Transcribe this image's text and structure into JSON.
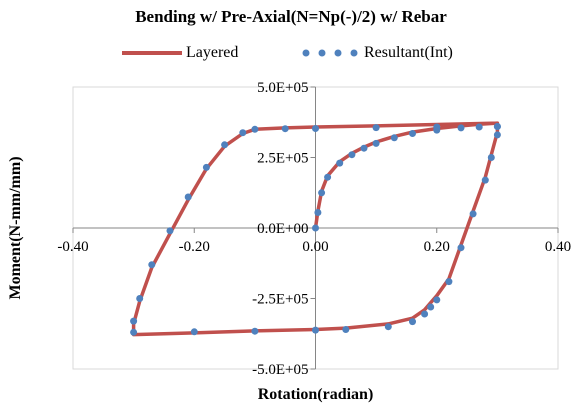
{
  "chart_data": {
    "type": "scatter",
    "title": "Bending w/ Pre-Axial(N=Np(-)/2) w/ Rebar",
    "xlabel": "Rotation(radian)",
    "ylabel": "Moment(N-mm/mm)",
    "xlim": [
      -0.4,
      0.4
    ],
    "ylim": [
      -500000,
      500000
    ],
    "x_ticks": [
      -0.4,
      -0.2,
      0.0,
      0.2,
      0.4
    ],
    "x_tick_labels": [
      "-0.40",
      "-0.20",
      "0.00",
      "0.20",
      "0.40"
    ],
    "y_ticks": [
      500000,
      250000,
      0,
      -250000,
      -500000
    ],
    "y_tick_labels": [
      "5.0E+05",
      "2.5E+05",
      "0.0E+00",
      "-2.5E+05",
      "-5.0E+05"
    ],
    "grid": false,
    "legend_position": "top",
    "series": [
      {
        "name": "Layered",
        "style": "line",
        "color": "#c0504d",
        "x": [
          0.0,
          0.004,
          0.01,
          0.02,
          0.04,
          0.06,
          0.08,
          0.1,
          0.13,
          0.16,
          0.2,
          0.24,
          0.27,
          0.3,
          0.3,
          0.29,
          0.28,
          0.26,
          0.24,
          0.22,
          0.2,
          0.19,
          0.18,
          0.16,
          0.12,
          0.05,
          0.0,
          -0.1,
          -0.2,
          -0.3,
          -0.3,
          -0.29,
          -0.27,
          -0.24,
          -0.21,
          -0.18,
          -0.15,
          -0.12,
          -0.1,
          -0.05,
          0.0,
          0.1,
          0.2,
          0.3
        ],
        "y": [
          0,
          60000,
          130000,
          185000,
          235000,
          265000,
          287000,
          305000,
          325000,
          340000,
          353000,
          362000,
          368000,
          372000,
          340000,
          260000,
          180000,
          60000,
          -60000,
          -180000,
          -240000,
          -265000,
          -290000,
          -320000,
          -340000,
          -355000,
          -360000,
          -365000,
          -372000,
          -378000,
          -340000,
          -260000,
          -140000,
          -20000,
          100000,
          210000,
          290000,
          335000,
          350000,
          355000,
          358000,
          362000,
          367000,
          372000
        ]
      },
      {
        "name": "Resultant(Int)",
        "style": "dots",
        "color": "#4f81bd",
        "x": [
          0.0,
          0.004,
          0.01,
          0.02,
          0.04,
          0.06,
          0.08,
          0.1,
          0.13,
          0.16,
          0.2,
          0.24,
          0.27,
          0.3,
          0.3,
          0.29,
          0.28,
          0.26,
          0.24,
          0.22,
          0.2,
          0.19,
          0.18,
          0.16,
          0.12,
          0.05,
          0.0,
          -0.1,
          -0.2,
          -0.3,
          -0.3,
          -0.29,
          -0.27,
          -0.24,
          -0.21,
          -0.18,
          -0.15,
          -0.12,
          -0.1,
          -0.05,
          0.0,
          0.1,
          0.2,
          0.3
        ],
        "y": [
          0,
          55000,
          125000,
          180000,
          230000,
          260000,
          283000,
          300000,
          320000,
          335000,
          347000,
          355000,
          358000,
          360000,
          330000,
          250000,
          170000,
          50000,
          -70000,
          -190000,
          -255000,
          -280000,
          -305000,
          -332000,
          -350000,
          -360000,
          -362000,
          -366000,
          -368000,
          -370000,
          -330000,
          -250000,
          -130000,
          -10000,
          110000,
          215000,
          295000,
          338000,
          350000,
          352000,
          353000,
          356000,
          358000,
          360000
        ]
      }
    ]
  }
}
